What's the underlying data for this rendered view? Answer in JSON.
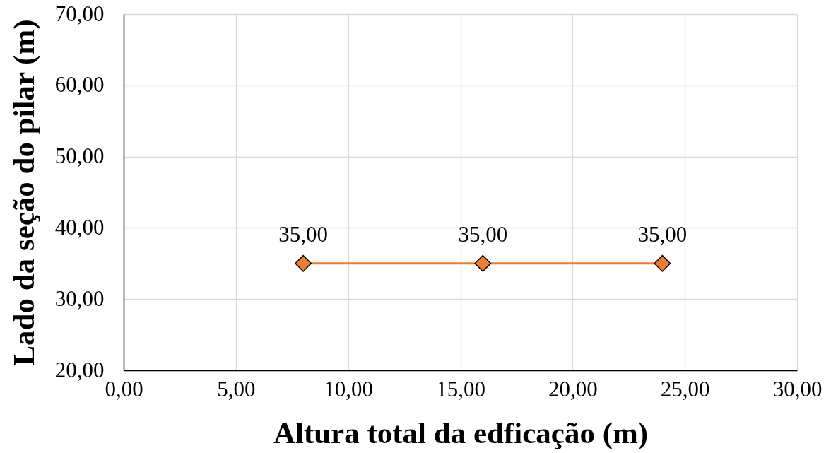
{
  "chart_data": {
    "type": "line",
    "xlabel": "Altura total da edficação (m)",
    "ylabel": "Lado da seção do pilar (m)",
    "x": [
      8,
      16,
      24
    ],
    "series": [
      {
        "color": "#ed7d31",
        "values": [
          35,
          35,
          35
        ],
        "value_labels": [
          "35,00",
          "35,00",
          "35,00"
        ]
      }
    ],
    "xlim": [
      0,
      30
    ],
    "xticks": [
      {
        "value": 0,
        "label": "0,00"
      },
      {
        "value": 5,
        "label": "5,00"
      },
      {
        "value": 10,
        "label": "10,00"
      },
      {
        "value": 15,
        "label": "15,00"
      },
      {
        "value": 20,
        "label": "20,00"
      },
      {
        "value": 25,
        "label": "25,00"
      },
      {
        "value": 30,
        "label": "30,00"
      }
    ],
    "ylim": [
      20,
      70
    ],
    "yticks": [
      {
        "value": 20,
        "label": "20,00"
      },
      {
        "value": 30,
        "label": "30,00"
      },
      {
        "value": 40,
        "label": "40,00"
      },
      {
        "value": 50,
        "label": "50,00"
      },
      {
        "value": 60,
        "label": "60,00"
      },
      {
        "value": 70,
        "label": "70,00"
      }
    ],
    "grid": true,
    "marker": "diamond",
    "line_style": "solid"
  }
}
